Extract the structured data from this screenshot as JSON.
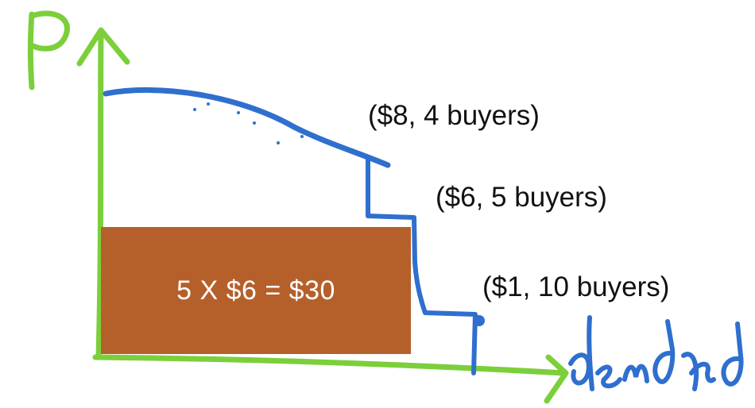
{
  "axes": {
    "y_label": "P",
    "x_label": "demand"
  },
  "revenue_box": {
    "text": "5 X $6 = $30",
    "color": "#b5602b"
  },
  "points": [
    {
      "label": "($8, 4 buyers)",
      "price": 8,
      "buyers": 4
    },
    {
      "label": "($6, 5 buyers)",
      "price": 6,
      "buyers": 5
    },
    {
      "label": "($1, 10 buyers)",
      "price": 1,
      "buyers": 10
    }
  ],
  "colors": {
    "axis": "#7ccf3a",
    "demand_curve": "#2f6fce",
    "text": "#111111"
  }
}
